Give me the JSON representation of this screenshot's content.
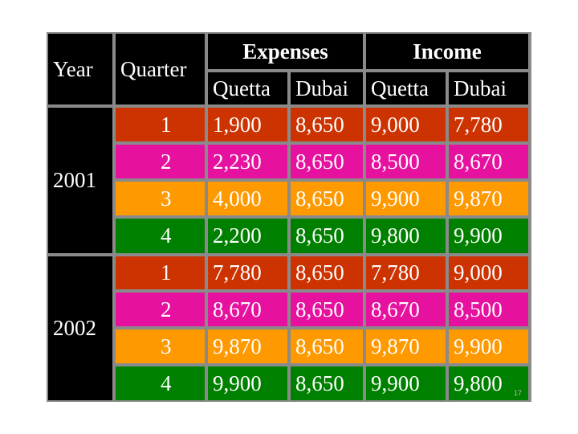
{
  "header": {
    "year_label": "Year",
    "quarter_label": "Quarter",
    "groups": [
      {
        "label": "Expenses",
        "subcolumns": [
          "Quetta",
          "Dubai"
        ]
      },
      {
        "label": "Income",
        "subcolumns": [
          "Quetta",
          "Dubai"
        ]
      }
    ]
  },
  "years": [
    "2001",
    "2002"
  ],
  "rows": [
    {
      "quarter": "1",
      "values": [
        "1,900",
        "8,650",
        "9,000",
        "7,780"
      ],
      "color": "#cc3300"
    },
    {
      "quarter": "2",
      "values": [
        "2,230",
        "8,650",
        "8,500",
        "8,670"
      ],
      "color": "#e6119e"
    },
    {
      "quarter": "3",
      "values": [
        "4,000",
        "8,650",
        "9,900",
        "9,870"
      ],
      "color": "#ff9900"
    },
    {
      "quarter": "4",
      "values": [
        "2,200",
        "8,650",
        "9,800",
        "9,900"
      ],
      "color": "#008000"
    },
    {
      "quarter": "1",
      "values": [
        "7,780",
        "8,650",
        "7,780",
        "9,000"
      ],
      "color": "#cc3300"
    },
    {
      "quarter": "2",
      "values": [
        "8,670",
        "8,650",
        "8,670",
        "8,500"
      ],
      "color": "#e6119e"
    },
    {
      "quarter": "3",
      "values": [
        "9,870",
        "8,650",
        "9,870",
        "9,900"
      ],
      "color": "#ff9900"
    },
    {
      "quarter": "4",
      "values": [
        "9,900",
        "8,650",
        "9,900",
        "9,800"
      ],
      "color": "#008000"
    }
  ],
  "page_number": "17"
}
